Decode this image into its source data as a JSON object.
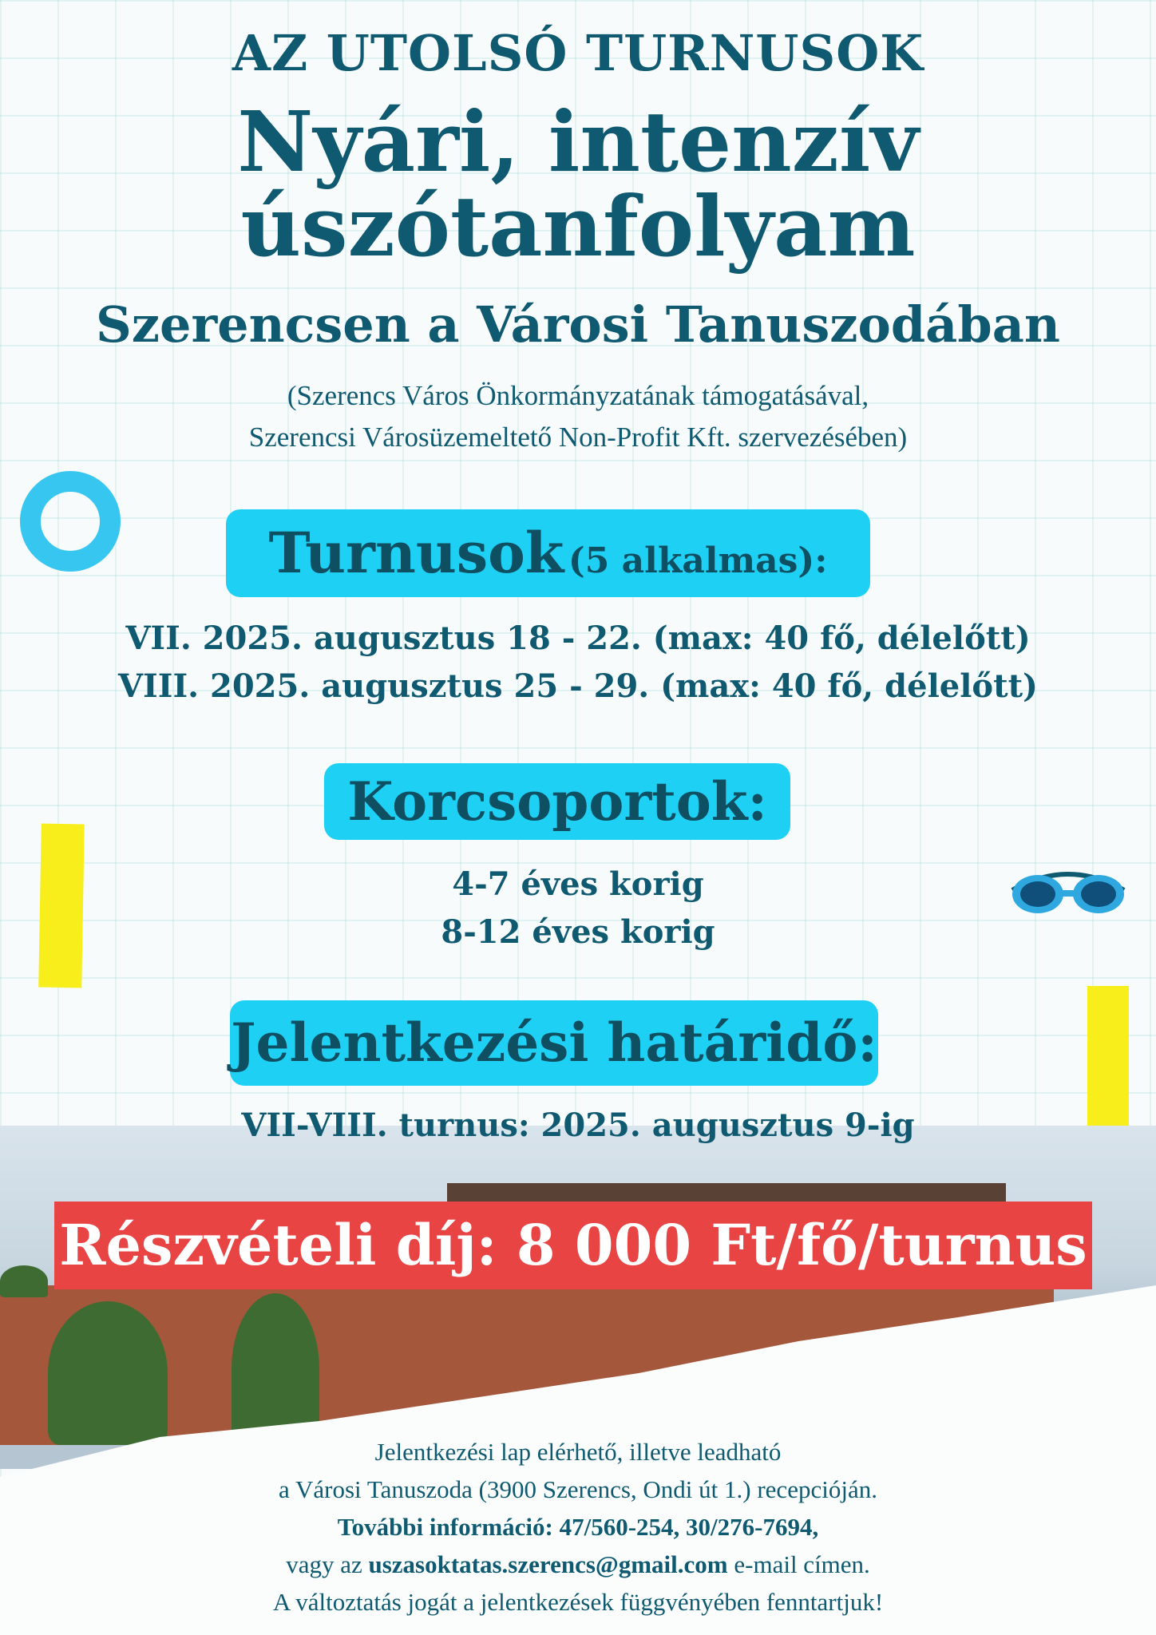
{
  "header": {
    "kicker": "AZ UTOLSÓ TURNUSOK",
    "title_line1": "Nyári, intenzív",
    "title_line2": "úszótanfolyam",
    "subtitle": "Szerencsen a Városi Tanuszodában",
    "support_line1": "(Szerencs Város Önkormányzatának támogatásával,",
    "support_line2": "Szerencsi Városüzemeltető Non-Profit Kft. szervezésében)"
  },
  "sessions": {
    "heading": "Turnusok",
    "heading_note": "(5 alkalmas):",
    "items": [
      "VII. 2025. augusztus 18 - 22. (max: 40 fő, délelőtt)",
      "VIII. 2025. augusztus 25 - 29. (max: 40 fő, délelőtt)"
    ]
  },
  "age_groups": {
    "heading": "Korcsoportok:",
    "items": [
      "4-7 éves korig",
      "8-12 éves korig"
    ]
  },
  "deadline": {
    "heading": "Jelentkezési határidő:",
    "text": "VII-VIII. turnus: 2025. augusztus 9-ig"
  },
  "fee": "Részvételi díj: 8 000 Ft/fő/turnus",
  "footer": {
    "line1": "Jelentkezési lap elérhető, illetve leadható",
    "line2": "a Városi Tanuszoda (3900 Szerencs, Ondi út 1.) recepcióján.",
    "line3": "További információ: 47/560-254, 30/276-7694,",
    "line4_pre": "vagy az",
    "email": "uszasoktatas.szerencs@gmail.com",
    "line4_post": "e-mail címen.",
    "line5": "A változtatás jogát a jelentkezések függvényében fenntartjuk!"
  },
  "colors": {
    "text": "#0f5a70",
    "pill": "#1fd0f5",
    "fee_banner": "#e84444",
    "accent_yellow": "#f7ee1c"
  },
  "icons": [
    "life-ring-icon",
    "swim-goggles-icon"
  ]
}
